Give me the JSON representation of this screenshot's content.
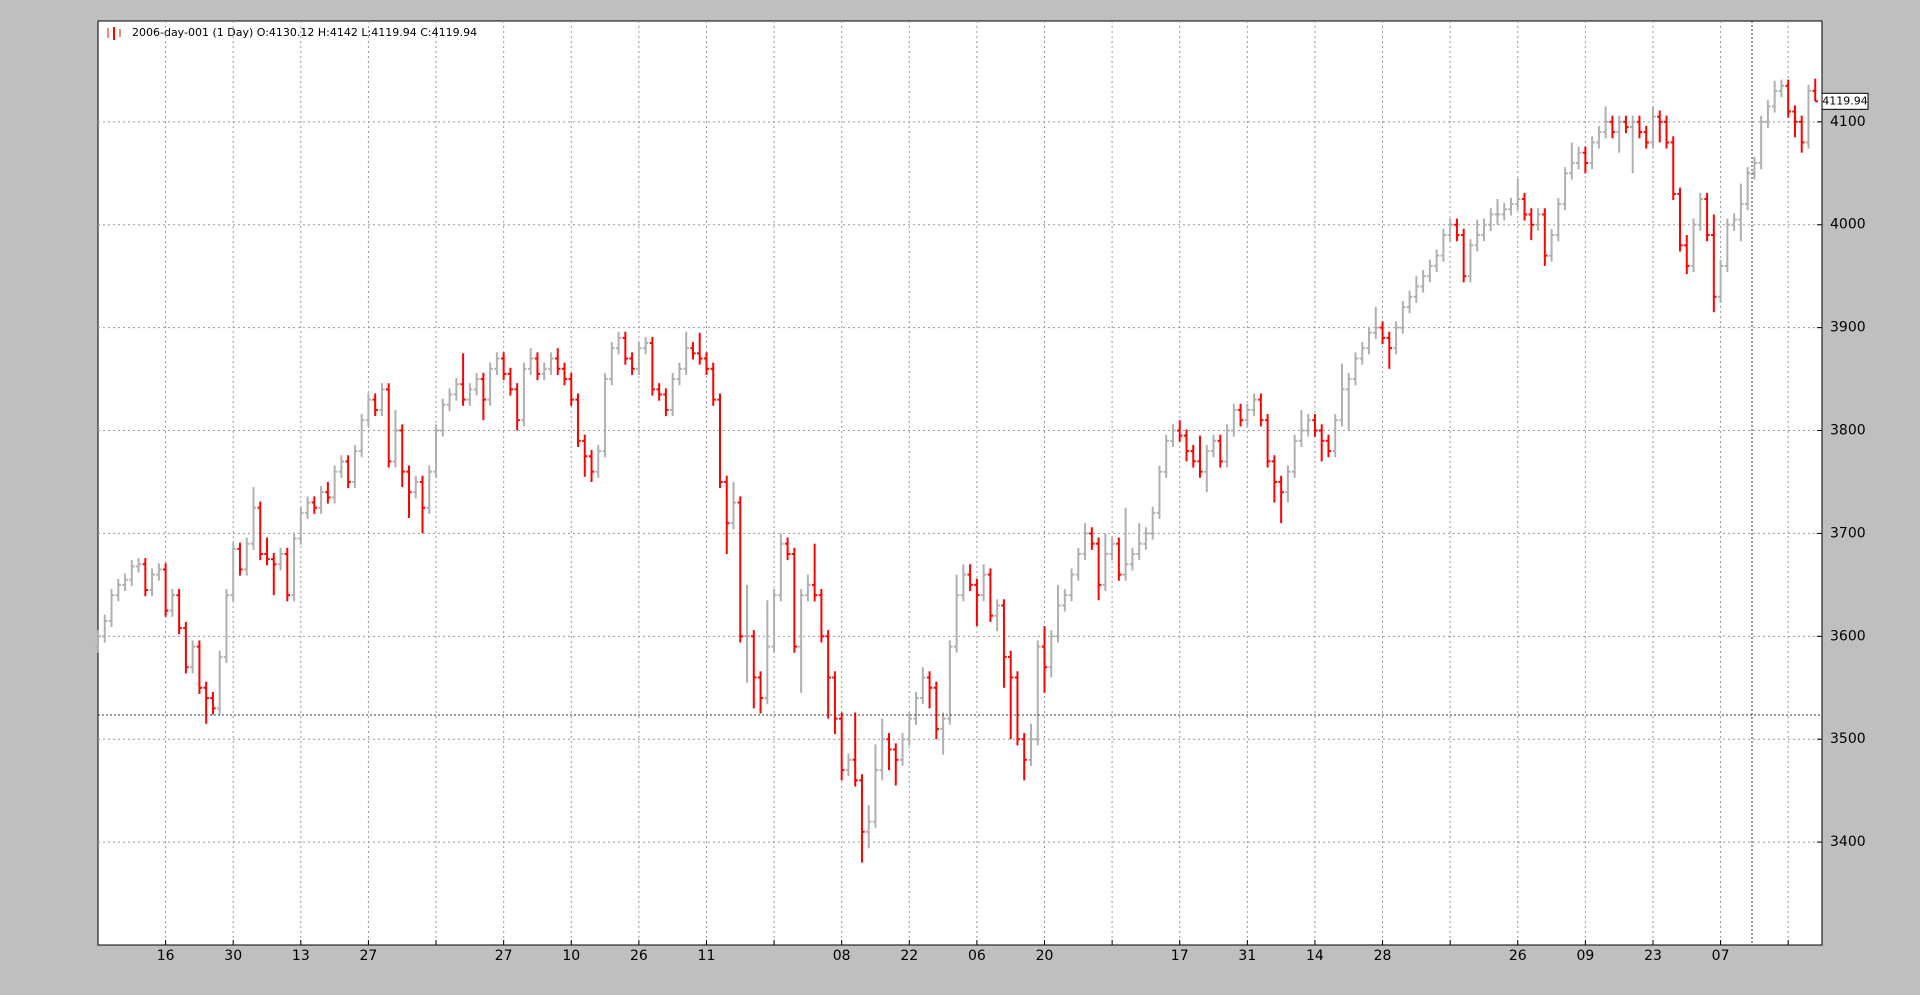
{
  "chart_data": {
    "type": "ohlc",
    "legend_text": "2006-day-001 (1 Day) O:4130.12 H:4142 L:4119.94 C:4119.94",
    "up_color": "#b0b0b0",
    "down_color": "#ff0000",
    "grid": true,
    "xlim": [
      0,
      255
    ],
    "ylim": [
      3300,
      4198
    ],
    "yticks": [
      3400,
      3500,
      3600,
      3700,
      3800,
      3900,
      4000,
      4100
    ],
    "xticks": [
      {
        "value": 10,
        "label": "16"
      },
      {
        "value": 20,
        "label": "30"
      },
      {
        "value": 30,
        "label": "13"
      },
      {
        "value": 40,
        "label": "27"
      },
      {
        "value": 60,
        "label": "27"
      },
      {
        "value": 70,
        "label": "10"
      },
      {
        "value": 80,
        "label": "26"
      },
      {
        "value": 90,
        "label": "11"
      },
      {
        "value": 110,
        "label": "08"
      },
      {
        "value": 120,
        "label": "22"
      },
      {
        "value": 130,
        "label": "06"
      },
      {
        "value": 140,
        "label": "20"
      },
      {
        "value": 160,
        "label": "17"
      },
      {
        "value": 170,
        "label": "31"
      },
      {
        "value": 180,
        "label": "14"
      },
      {
        "value": 190,
        "label": "28"
      },
      {
        "value": 210,
        "label": "26"
      },
      {
        "value": 220,
        "label": "09"
      },
      {
        "value": 230,
        "label": "23"
      },
      {
        "value": 240,
        "label": "07"
      }
    ],
    "xminor": [
      50,
      100,
      150,
      200,
      250
    ],
    "open": [
      3590,
      3600,
      3615,
      3640,
      3650,
      3655,
      3668,
      3670,
      3645,
      3660,
      3665,
      3625,
      3640,
      3608,
      3570,
      3590,
      3550,
      3540,
      3530,
      3580,
      3640,
      3685,
      3665,
      3690,
      3725,
      3680,
      3675,
      3670,
      3680,
      3640,
      3695,
      3720,
      3730,
      3725,
      3740,
      3735,
      3760,
      3770,
      3750,
      3780,
      3810,
      3830,
      3820,
      3840,
      3770,
      3800,
      3760,
      3740,
      3750,
      3725,
      3760,
      3800,
      3825,
      3835,
      3845,
      3830,
      3840,
      3850,
      3830,
      3860,
      3870,
      3855,
      3840,
      3810,
      3860,
      3870,
      3855,
      3860,
      3870,
      3860,
      3850,
      3830,
      3790,
      3775,
      3760,
      3780,
      3850,
      3880,
      3890,
      3870,
      3860,
      3880,
      3885,
      3840,
      3835,
      3820,
      3850,
      3860,
      3880,
      3875,
      3870,
      3860,
      3830,
      3750,
      3710,
      3730,
      3600,
      3600,
      3560,
      3540,
      3590,
      3640,
      3690,
      3680,
      3590,
      3640,
      3650,
      3640,
      3600,
      3560,
      3520,
      3470,
      3480,
      3460,
      3410,
      3420,
      3470,
      3500,
      3490,
      3480,
      3500,
      3520,
      3540,
      3560,
      3550,
      3510,
      3520,
      3590,
      3640,
      3660,
      3650,
      3640,
      3660,
      3620,
      3630,
      3580,
      3560,
      3500,
      3480,
      3500,
      3590,
      3570,
      3600,
      3630,
      3640,
      3660,
      3680,
      3700,
      3690,
      3650,
      3680,
      3690,
      3660,
      3670,
      3680,
      3690,
      3700,
      3720,
      3760,
      3790,
      3800,
      3795,
      3780,
      3770,
      3760,
      3780,
      3790,
      3770,
      3800,
      3820,
      3810,
      3820,
      3830,
      3810,
      3770,
      3750,
      3740,
      3760,
      3790,
      3800,
      3810,
      3800,
      3790,
      3780,
      3810,
      3840,
      3850,
      3870,
      3880,
      3895,
      3900,
      3890,
      3880,
      3900,
      3920,
      3930,
      3940,
      3950,
      3960,
      3970,
      3990,
      4000,
      3990,
      3950,
      3980,
      3990,
      4000,
      4010,
      4010,
      4015,
      4020,
      4025,
      4010,
      4000,
      4010,
      3970,
      3990,
      4020,
      4050,
      4060,
      4070,
      4060,
      4080,
      4090,
      4100,
      4090,
      4100,
      4095,
      4100,
      4090,
      4080,
      4105,
      4100,
      4080,
      4030,
      3980,
      3960,
      4000,
      4025,
      3990,
      3930,
      3960,
      4000,
      4005,
      4020,
      4050,
      4060,
      4100,
      4115,
      4130,
      4135,
      4110,
      4100,
      4080,
      4130.12
    ],
    "high": [
      3606,
      3621,
      3646,
      3656,
      3661,
      3674,
      3676,
      3676,
      3666,
      3671,
      3671,
      3646,
      3646,
      3614,
      3596,
      3596,
      3556,
      3546,
      3586,
      3646,
      3691,
      3691,
      3696,
      3745,
      3731,
      3696,
      3681,
      3686,
      3686,
      3701,
      3726,
      3736,
      3736,
      3746,
      3750,
      3766,
      3776,
      3776,
      3786,
      3816,
      3836,
      3836,
      3846,
      3846,
      3820,
      3806,
      3766,
      3756,
      3756,
      3766,
      3806,
      3831,
      3841,
      3851,
      3875,
      3846,
      3856,
      3856,
      3866,
      3876,
      3876,
      3861,
      3846,
      3866,
      3880,
      3876,
      3866,
      3876,
      3880,
      3866,
      3856,
      3836,
      3796,
      3781,
      3786,
      3856,
      3886,
      3896,
      3896,
      3876,
      3886,
      3891,
      3891,
      3846,
      3841,
      3856,
      3866,
      3896,
      3886,
      3895,
      3876,
      3866,
      3836,
      3756,
      3750,
      3736,
      3650,
      3606,
      3566,
      3635,
      3646,
      3700,
      3696,
      3686,
      3646,
      3660,
      3690,
      3646,
      3606,
      3566,
      3526,
      3486,
      3526,
      3466,
      3436,
      3495,
      3520,
      3506,
      3496,
      3506,
      3526,
      3546,
      3570,
      3566,
      3556,
      3526,
      3596,
      3660,
      3670,
      3670,
      3656,
      3670,
      3666,
      3636,
      3636,
      3586,
      3566,
      3506,
      3515,
      3596,
      3610,
      3606,
      3650,
      3646,
      3666,
      3686,
      3710,
      3706,
      3696,
      3700,
      3696,
      3696,
      3725,
      3686,
      3710,
      3706,
      3726,
      3766,
      3796,
      3806,
      3810,
      3801,
      3786,
      3795,
      3786,
      3796,
      3796,
      3806,
      3826,
      3826,
      3826,
      3836,
      3836,
      3816,
      3776,
      3756,
      3766,
      3796,
      3820,
      3816,
      3816,
      3806,
      3796,
      3816,
      3865,
      3856,
      3876,
      3886,
      3901,
      3920,
      3906,
      3896,
      3906,
      3926,
      3936,
      3950,
      3956,
      3966,
      3976,
      3996,
      4006,
      4006,
      3996,
      3986,
      4005,
      4006,
      4016,
      4025,
      4021,
      4026,
      4045,
      4031,
      4016,
      4016,
      4016,
      3996,
      4026,
      4056,
      4080,
      4076,
      4076,
      4086,
      4096,
      4115,
      4106,
      4106,
      4106,
      4106,
      4106,
      4096,
      4115,
      4111,
      4106,
      4086,
      4036,
      3990,
      4006,
      4031,
      4031,
      4010,
      3966,
      4006,
      4011,
      4040,
      4056,
      4066,
      4106,
      4121,
      4140,
      4141,
      4141,
      4116,
      4106,
      4136,
      4142
    ],
    "low": [
      3584,
      3594,
      3609,
      3634,
      3644,
      3649,
      3662,
      3639,
      3639,
      3654,
      3619,
      3619,
      3602,
      3564,
      3564,
      3544,
      3515,
      3524,
      3524,
      3574,
      3634,
      3659,
      3659,
      3684,
      3674,
      3669,
      3640,
      3664,
      3634,
      3634,
      3689,
      3714,
      3719,
      3719,
      3729,
      3729,
      3754,
      3744,
      3744,
      3774,
      3804,
      3814,
      3814,
      3764,
      3764,
      3745,
      3715,
      3734,
      3700,
      3719,
      3754,
      3794,
      3819,
      3829,
      3824,
      3824,
      3834,
      3810,
      3824,
      3854,
      3849,
      3834,
      3800,
      3804,
      3854,
      3849,
      3849,
      3854,
      3854,
      3844,
      3824,
      3784,
      3755,
      3750,
      3754,
      3774,
      3844,
      3874,
      3864,
      3854,
      3854,
      3874,
      3834,
      3829,
      3814,
      3814,
      3844,
      3854,
      3869,
      3864,
      3854,
      3824,
      3744,
      3680,
      3704,
      3594,
      3555,
      3530,
      3525,
      3534,
      3584,
      3634,
      3674,
      3584,
      3545,
      3634,
      3634,
      3594,
      3520,
      3505,
      3460,
      3464,
      3454,
      3380,
      3394,
      3414,
      3460,
      3470,
      3455,
      3474,
      3494,
      3514,
      3534,
      3530,
      3500,
      3485,
      3514,
      3584,
      3634,
      3644,
      3610,
      3634,
      3614,
      3605,
      3550,
      3500,
      3494,
      3460,
      3474,
      3494,
      3545,
      3560,
      3594,
      3624,
      3634,
      3654,
      3674,
      3684,
      3635,
      3644,
      3674,
      3654,
      3654,
      3664,
      3674,
      3684,
      3694,
      3714,
      3754,
      3784,
      3789,
      3770,
      3764,
      3754,
      3740,
      3774,
      3764,
      3764,
      3794,
      3804,
      3804,
      3814,
      3804,
      3764,
      3730,
      3710,
      3730,
      3754,
      3784,
      3794,
      3794,
      3770,
      3774,
      3774,
      3804,
      3800,
      3844,
      3864,
      3874,
      3889,
      3884,
      3860,
      3874,
      3894,
      3914,
      3924,
      3934,
      3944,
      3954,
      3964,
      3984,
      3984,
      3944,
      3944,
      3974,
      3984,
      3994,
      4000,
      4004,
      4009,
      4014,
      4004,
      3985,
      3994,
      3960,
      3964,
      3984,
      4014,
      4044,
      4054,
      4050,
      4054,
      4074,
      4084,
      4084,
      4070,
      4089,
      4050,
      4084,
      4074,
      4074,
      4080,
      4074,
      4024,
      3974,
      3952,
      3954,
      3994,
      3984,
      3915,
      3924,
      3954,
      3994,
      3984,
      4014,
      4044,
      4054,
      4094,
      4109,
      4124,
      4104,
      4085,
      4070,
      4074,
      4119.94
    ],
    "close": [
      3600,
      3615,
      3640,
      3650,
      3655,
      3668,
      3670,
      3645,
      3660,
      3665,
      3625,
      3640,
      3608,
      3570,
      3590,
      3550,
      3540,
      3530,
      3580,
      3640,
      3685,
      3665,
      3690,
      3725,
      3680,
      3675,
      3670,
      3680,
      3640,
      3695,
      3720,
      3730,
      3725,
      3740,
      3735,
      3760,
      3770,
      3750,
      3780,
      3810,
      3830,
      3820,
      3840,
      3770,
      3800,
      3760,
      3740,
      3750,
      3725,
      3760,
      3800,
      3825,
      3835,
      3845,
      3830,
      3840,
      3850,
      3830,
      3860,
      3870,
      3855,
      3840,
      3810,
      3860,
      3870,
      3855,
      3860,
      3870,
      3860,
      3850,
      3830,
      3790,
      3775,
      3760,
      3780,
      3850,
      3880,
      3890,
      3870,
      3860,
      3880,
      3885,
      3840,
      3835,
      3820,
      3850,
      3860,
      3880,
      3875,
      3870,
      3860,
      3830,
      3750,
      3710,
      3730,
      3600,
      3600,
      3560,
      3540,
      3590,
      3640,
      3690,
      3680,
      3590,
      3640,
      3650,
      3640,
      3600,
      3560,
      3520,
      3470,
      3480,
      3460,
      3410,
      3420,
      3470,
      3500,
      3490,
      3480,
      3500,
      3520,
      3540,
      3560,
      3550,
      3510,
      3520,
      3590,
      3640,
      3660,
      3650,
      3640,
      3660,
      3620,
      3630,
      3580,
      3560,
      3500,
      3480,
      3500,
      3590,
      3570,
      3600,
      3630,
      3640,
      3660,
      3680,
      3700,
      3690,
      3650,
      3680,
      3690,
      3660,
      3670,
      3680,
      3690,
      3700,
      3720,
      3760,
      3790,
      3800,
      3795,
      3780,
      3770,
      3760,
      3780,
      3790,
      3770,
      3800,
      3820,
      3810,
      3820,
      3830,
      3810,
      3770,
      3750,
      3740,
      3760,
      3790,
      3800,
      3810,
      3800,
      3790,
      3780,
      3810,
      3840,
      3850,
      3870,
      3880,
      3895,
      3900,
      3890,
      3880,
      3900,
      3920,
      3930,
      3940,
      3950,
      3960,
      3970,
      3990,
      4000,
      3990,
      3950,
      3980,
      3990,
      4000,
      4010,
      4010,
      4015,
      4020,
      4025,
      4010,
      4000,
      4010,
      3970,
      3990,
      4020,
      4050,
      4060,
      4070,
      4060,
      4080,
      4090,
      4100,
      4090,
      4100,
      4095,
      4100,
      4090,
      4080,
      4105,
      4100,
      4080,
      4030,
      3980,
      3960,
      4000,
      4025,
      3990,
      3930,
      3960,
      4000,
      4005,
      4020,
      4050,
      4060,
      4100,
      4115,
      4130,
      4135,
      4110,
      4100,
      4080,
      4130.12,
      4119.94
    ]
  }
}
